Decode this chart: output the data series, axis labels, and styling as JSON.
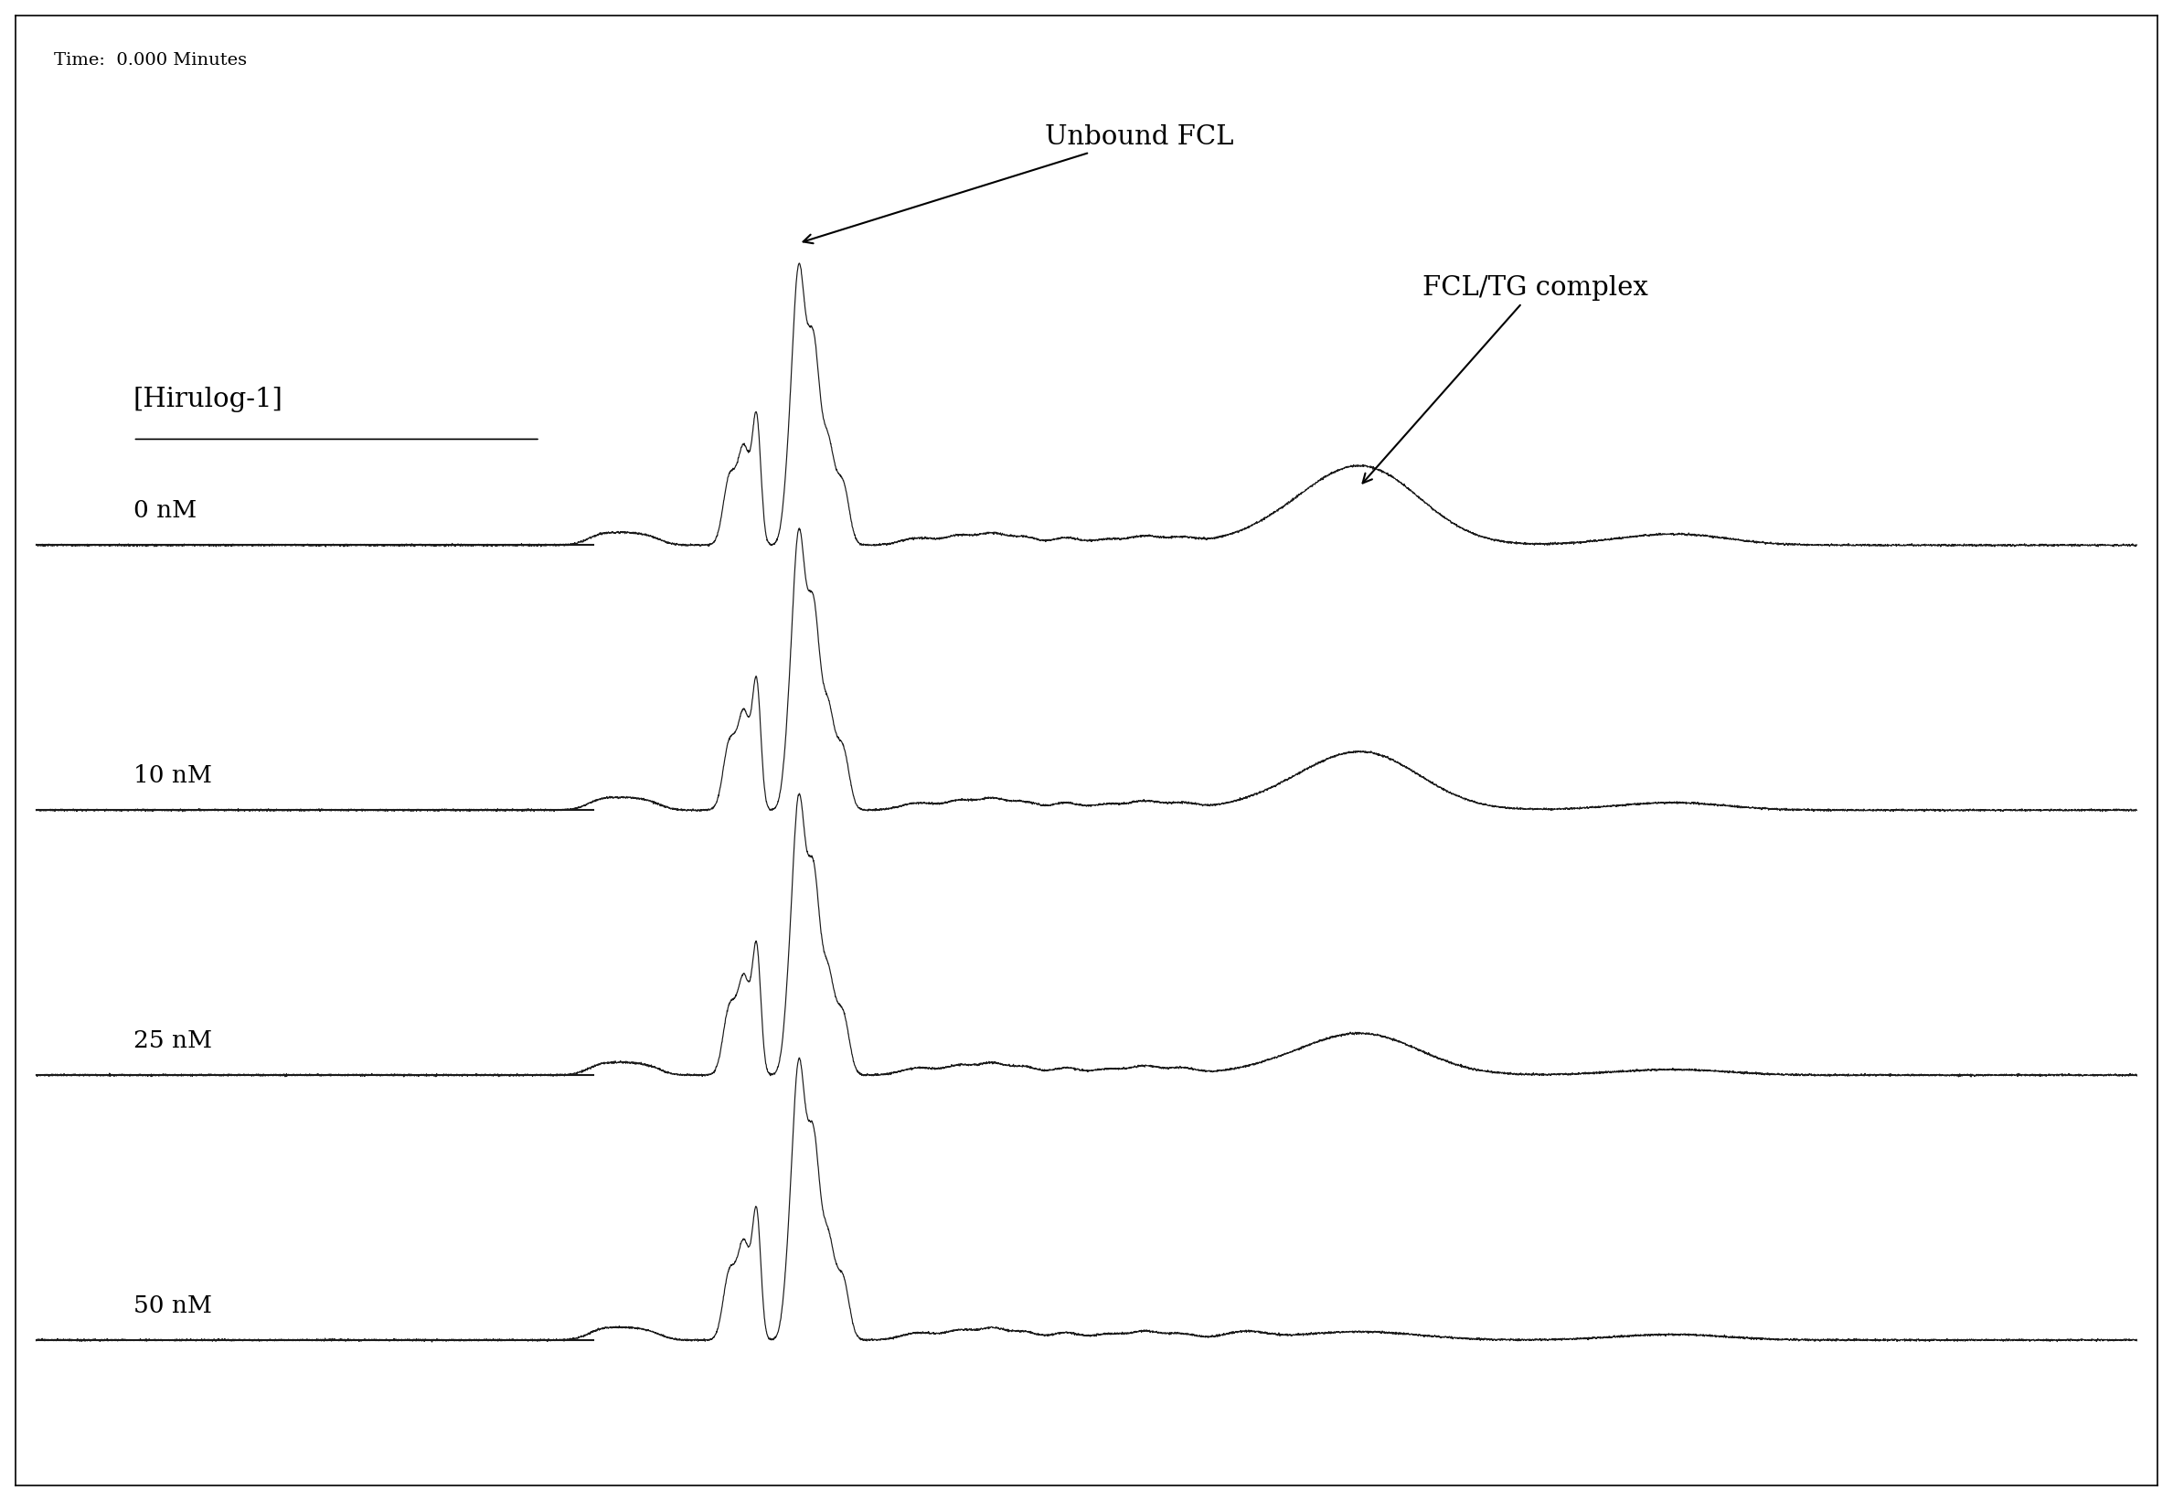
{
  "title_text": "Time:  0.000 Minutes",
  "hirulog_label": "[Hirulog-1]",
  "concentrations": [
    "0 nM",
    "10 nM",
    "25 nM",
    "50 nM"
  ],
  "annotation_unbound": "Unbound FCL",
  "annotation_complex": "FCL/TG complex",
  "background_color": "#ffffff",
  "line_color": "#1a1a1a",
  "fig_width": 23.77,
  "fig_height": 16.42,
  "trace_offsets": [
    3.0,
    2.0,
    1.0,
    0.0
  ],
  "concentrations_nM": [
    0,
    10,
    25,
    50
  ]
}
